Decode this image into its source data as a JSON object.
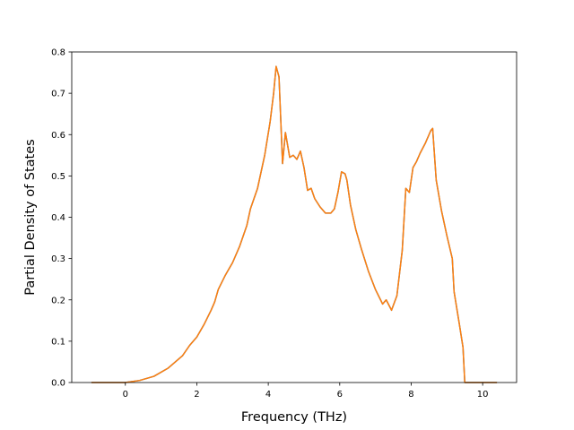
{
  "chart_data": {
    "type": "line",
    "title": "",
    "xlabel": "Frequency (THz)",
    "ylabel": "Partial Density of States",
    "xlim": [
      -1.5,
      10.95
    ],
    "ylim": [
      0.0,
      0.8
    ],
    "xticks": [
      0,
      2,
      4,
      6,
      8,
      10
    ],
    "yticks": [
      0.0,
      0.1,
      0.2,
      0.3,
      0.4,
      0.5,
      0.6,
      0.7,
      0.8
    ],
    "xtick_labels": [
      "0",
      "2",
      "4",
      "6",
      "8",
      "10"
    ],
    "ytick_labels": [
      "0.0",
      "0.1",
      "0.2",
      "0.3",
      "0.4",
      "0.5",
      "0.6",
      "0.7",
      "0.8"
    ],
    "grid": false,
    "legend": "none",
    "series": [
      {
        "color": "#1f77b4",
        "x": [
          -0.95,
          0.0,
          0.4,
          0.8,
          1.2,
          1.6,
          1.8,
          2.0,
          2.2,
          2.4,
          2.5,
          2.6,
          2.8,
          3.0,
          3.2,
          3.4,
          3.5,
          3.7,
          3.9,
          4.05,
          4.15,
          4.22,
          4.3,
          4.4,
          4.48,
          4.6,
          4.7,
          4.8,
          4.9,
          5.0,
          5.1,
          5.2,
          5.3,
          5.45,
          5.6,
          5.75,
          5.85,
          5.95,
          6.05,
          6.15,
          6.2,
          6.3,
          6.45,
          6.6,
          6.8,
          7.0,
          7.2,
          7.3,
          7.45,
          7.6,
          7.75,
          7.85,
          7.95,
          8.05,
          8.15,
          8.25,
          8.4,
          8.55,
          8.6,
          8.7,
          8.85,
          9.0,
          9.15,
          9.2,
          9.35,
          9.45,
          9.5,
          9.55,
          9.7,
          10.4
        ],
        "y": [
          0.0,
          0.0,
          0.005,
          0.015,
          0.035,
          0.065,
          0.09,
          0.11,
          0.14,
          0.175,
          0.195,
          0.225,
          0.26,
          0.29,
          0.33,
          0.38,
          0.42,
          0.47,
          0.55,
          0.63,
          0.7,
          0.765,
          0.74,
          0.53,
          0.605,
          0.545,
          0.55,
          0.54,
          0.56,
          0.52,
          0.465,
          0.47,
          0.445,
          0.425,
          0.41,
          0.41,
          0.42,
          0.46,
          0.51,
          0.505,
          0.49,
          0.43,
          0.37,
          0.325,
          0.27,
          0.225,
          0.19,
          0.2,
          0.175,
          0.21,
          0.32,
          0.47,
          0.46,
          0.52,
          0.535,
          0.555,
          0.58,
          0.61,
          0.615,
          0.49,
          0.415,
          0.355,
          0.3,
          0.22,
          0.14,
          0.085,
          0.0,
          0.0,
          0.0,
          0.0
        ]
      },
      {
        "color": "#ff7f0e",
        "x": [
          -0.95,
          0.0,
          0.4,
          0.8,
          1.2,
          1.6,
          1.8,
          2.0,
          2.2,
          2.4,
          2.5,
          2.6,
          2.8,
          3.0,
          3.2,
          3.4,
          3.5,
          3.7,
          3.9,
          4.05,
          4.15,
          4.22,
          4.3,
          4.4,
          4.48,
          4.6,
          4.7,
          4.8,
          4.9,
          5.0,
          5.1,
          5.2,
          5.3,
          5.45,
          5.6,
          5.75,
          5.85,
          5.95,
          6.05,
          6.15,
          6.2,
          6.3,
          6.45,
          6.6,
          6.8,
          7.0,
          7.2,
          7.3,
          7.45,
          7.6,
          7.75,
          7.85,
          7.95,
          8.05,
          8.15,
          8.25,
          8.4,
          8.55,
          8.6,
          8.7,
          8.85,
          9.0,
          9.15,
          9.2,
          9.35,
          9.45,
          9.5,
          9.55,
          9.7,
          10.4
        ],
        "y": [
          0.0,
          0.0,
          0.005,
          0.015,
          0.035,
          0.065,
          0.09,
          0.11,
          0.14,
          0.175,
          0.195,
          0.225,
          0.26,
          0.29,
          0.33,
          0.38,
          0.42,
          0.47,
          0.55,
          0.63,
          0.7,
          0.765,
          0.74,
          0.53,
          0.605,
          0.545,
          0.55,
          0.54,
          0.56,
          0.52,
          0.465,
          0.47,
          0.445,
          0.425,
          0.41,
          0.41,
          0.42,
          0.46,
          0.51,
          0.505,
          0.49,
          0.43,
          0.37,
          0.325,
          0.27,
          0.225,
          0.19,
          0.2,
          0.175,
          0.21,
          0.32,
          0.47,
          0.46,
          0.52,
          0.535,
          0.555,
          0.58,
          0.61,
          0.615,
          0.49,
          0.415,
          0.355,
          0.3,
          0.22,
          0.14,
          0.085,
          0.0,
          0.0,
          0.0,
          0.0
        ]
      }
    ]
  }
}
